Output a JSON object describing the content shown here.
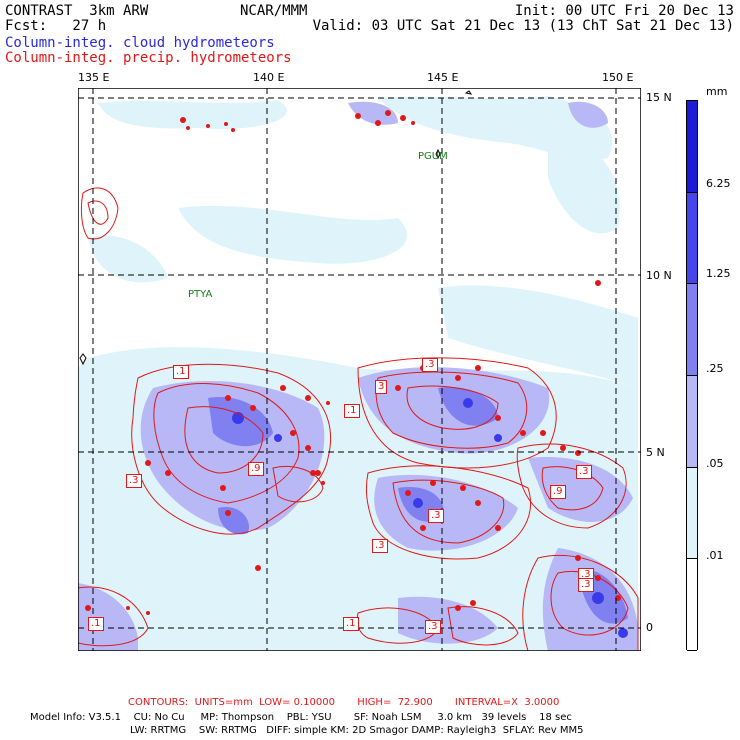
{
  "header": {
    "line1_left": "CONTRAST  3km ARW",
    "line1_center": "NCAR/MMM",
    "line1_right": "Init: 00 UTC Fri 20 Dec 13",
    "line2_left": "Fcst:   27 h",
    "line2_right": "Valid: 03 UTC Sat 21 Dec 13 (13 ChT Sat 21 Dec 13)",
    "field1": "Column-integ. cloud hydrometeors",
    "field2": "Column-integ. precip. hydrometeors"
  },
  "map": {
    "lon_labels": [
      "135 E",
      "140 E",
      "145 E",
      "150 E"
    ],
    "lat_labels": [
      "15 N",
      "10 N",
      "5 N",
      "0"
    ],
    "stations": [
      "PGUM",
      "PTYA"
    ],
    "contour_labels": [
      ".1",
      ".3",
      "3",
      ".1",
      ".3",
      ".9",
      ".3",
      ".3",
      ".9",
      ".3",
      ".3",
      ".3",
      ".1",
      ".1",
      ".3"
    ]
  },
  "colorbar": {
    "unit": "mm",
    "levels": [
      "6.25",
      "1.25",
      ".25",
      ".05",
      ".01"
    ],
    "colors": [
      "#1c1cd8",
      "#4646ea",
      "#8080f0",
      "#b8b8f6",
      "#dff4fa",
      "#ffffff"
    ]
  },
  "footer": {
    "contours": "CONTOURS:  UNITS=mm  LOW= 0.10000       HIGH=  72.900       INTERVAL=X  3.0000",
    "model_line1": "Model Info: V3.5.1    CU: No Cu     MP: Thompson    PBL: YSU       SF: Noah LSM     3.0 km   39 levels    18 sec",
    "model_line2": "LW: RRTMG    SW: RRTMG   DIFF: simple KM: 2D Smagor DAMP: Rayleigh3  SFLAY: Rev MM5"
  }
}
